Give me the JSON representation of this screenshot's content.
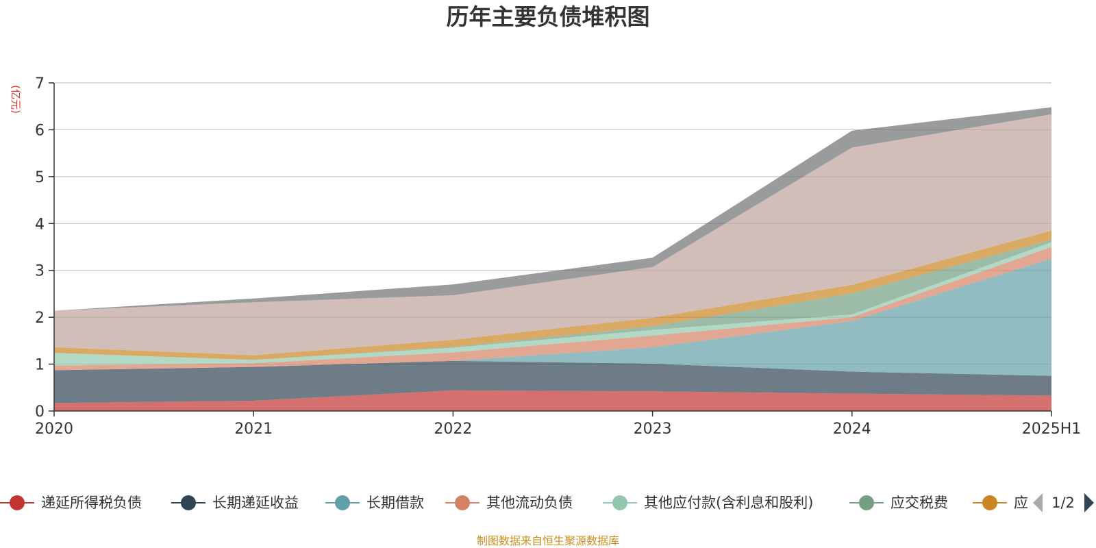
{
  "chart_data": {
    "type": "area",
    "stacked": true,
    "title": "历年主要负债堆积图",
    "unit_label": "(亿元)",
    "categories": [
      "2020",
      "2021",
      "2022",
      "2023",
      "2024",
      "2025H1"
    ],
    "y_ticks": [
      "0",
      "1",
      "2",
      "3",
      "4",
      "5",
      "6",
      "7"
    ],
    "ylim": [
      0,
      7
    ],
    "grid": true,
    "series": [
      {
        "name": "递延所得税负债",
        "color": "#c23531",
        "values": [
          0.17,
          0.22,
          0.44,
          0.42,
          0.37,
          0.33
        ]
      },
      {
        "name": "长期递延收益",
        "color": "#2f4554",
        "values": [
          0.7,
          0.72,
          0.63,
          0.59,
          0.47,
          0.42
        ]
      },
      {
        "name": "长期借款",
        "color": "#61a0a8",
        "values": [
          0.0,
          0.0,
          0.0,
          0.35,
          1.08,
          2.5
        ]
      },
      {
        "name": "其他流动负债",
        "color": "#d48265",
        "values": [
          0.1,
          0.08,
          0.18,
          0.25,
          0.08,
          0.25
        ]
      },
      {
        "name": "其他应付款(含利息和股利)",
        "color": "#91c7ae",
        "values": [
          0.27,
          0.07,
          0.1,
          0.12,
          0.06,
          0.1
        ]
      },
      {
        "name": "应交税费",
        "color": "#749f83",
        "values": [
          0.0,
          0.0,
          0.02,
          0.08,
          0.45,
          0.05
        ]
      },
      {
        "name": "应付账款",
        "color": "#ca8622",
        "values": [
          0.12,
          0.1,
          0.15,
          0.18,
          0.18,
          0.2
        ]
      },
      {
        "name": "",
        "color": "#bda29a",
        "values": [
          0.78,
          1.13,
          0.95,
          1.08,
          2.93,
          2.48
        ]
      },
      {
        "name": "",
        "color": "#6e7074",
        "values": [
          0.0,
          0.08,
          0.23,
          0.2,
          0.36,
          0.15
        ]
      }
    ],
    "legend": {
      "placement": "bottom",
      "visible_labels": [
        "递延所得税负债",
        "长期递延收益",
        "长期借款",
        "其他流动负债",
        "其他应付款(含利息和股利)",
        "应交税费",
        "应"
      ],
      "page": "1/2"
    }
  },
  "footer": {
    "source": "制图数据来自恒生聚源数据库"
  }
}
